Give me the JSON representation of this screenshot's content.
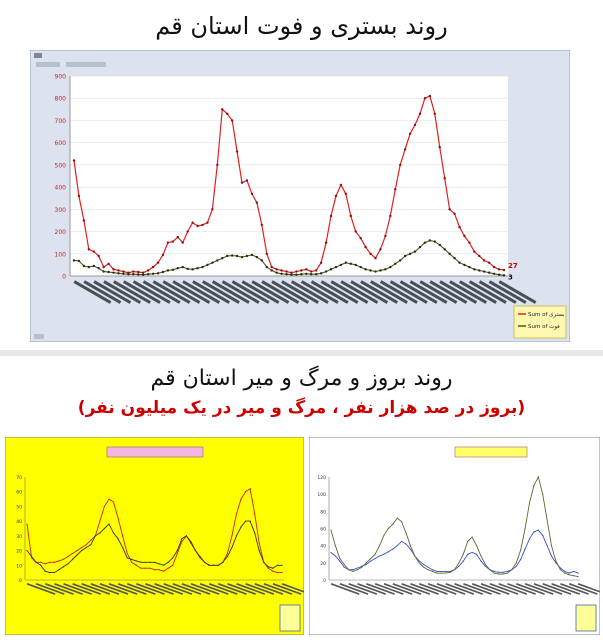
{
  "page": {
    "title_top": "روند بستری و فوت استان قم",
    "title_bottom": "روند بروز و مرگ و میر استان قم",
    "subtitle_bottom": "(بروز در صد هزار نفر ، مرگ و میر در یک میلیون نفر)"
  },
  "chart_data": [
    {
      "type": "line",
      "y_left_ticks": [
        0,
        100,
        200,
        300,
        400,
        500,
        600,
        700,
        800,
        900
      ],
      "ylim": [
        0,
        900
      ],
      "grid": true,
      "legend_placement": "bottom-right",
      "series": [
        {
          "name": "Sum of بستری",
          "color": "#e02020",
          "values": [
            520,
            360,
            250,
            120,
            110,
            90,
            40,
            55,
            30,
            25,
            20,
            15,
            20,
            18,
            15,
            25,
            40,
            60,
            95,
            150,
            155,
            175,
            150,
            200,
            240,
            225,
            230,
            240,
            300,
            500,
            750,
            730,
            700,
            560,
            420,
            430,
            370,
            330,
            230,
            100,
            40,
            30,
            25,
            20,
            15,
            20,
            25,
            30,
            20,
            25,
            60,
            150,
            270,
            360,
            410,
            370,
            270,
            200,
            170,
            130,
            100,
            80,
            120,
            180,
            270,
            390,
            500,
            570,
            640,
            680,
            730,
            800,
            810,
            730,
            580,
            440,
            300,
            280,
            220,
            180,
            150,
            110,
            90,
            70,
            60,
            40,
            30,
            27
          ],
          "end_label": "27"
        },
        {
          "name": "Sum of فوت",
          "color": "#555522",
          "values": [
            70,
            68,
            45,
            40,
            45,
            35,
            20,
            18,
            15,
            12,
            10,
            8,
            8,
            7,
            6,
            8,
            10,
            12,
            18,
            25,
            28,
            35,
            40,
            32,
            30,
            35,
            40,
            50,
            60,
            70,
            80,
            90,
            92,
            90,
            85,
            90,
            95,
            85,
            70,
            40,
            25,
            15,
            10,
            8,
            6,
            6,
            8,
            10,
            8,
            8,
            12,
            20,
            30,
            40,
            50,
            60,
            55,
            50,
            40,
            30,
            25,
            20,
            25,
            30,
            40,
            55,
            70,
            90,
            100,
            110,
            130,
            150,
            160,
            155,
            140,
            120,
            100,
            80,
            60,
            50,
            40,
            30,
            25,
            20,
            15,
            10,
            6,
            3
          ],
          "end_label": "3"
        }
      ]
    },
    {
      "type": "line",
      "y_ticks": [
        0,
        10,
        20,
        30,
        40,
        50,
        60,
        70
      ],
      "ylim": [
        0,
        70
      ],
      "grid": false,
      "series": [
        {
          "color": "#cc2222",
          "values": [
            38,
            15,
            12,
            12,
            11,
            12,
            12,
            13,
            14,
            16,
            18,
            20,
            22,
            24,
            27,
            30,
            40,
            50,
            55,
            53,
            42,
            30,
            18,
            12,
            10,
            8,
            8,
            8,
            7,
            7,
            6,
            8,
            10,
            18,
            26,
            30,
            25,
            20,
            15,
            12,
            10,
            10,
            10,
            12,
            18,
            30,
            45,
            55,
            60,
            62,
            45,
            25,
            12,
            8,
            6,
            5,
            5
          ]
        },
        {
          "color": "#333333",
          "values": [
            20,
            16,
            12,
            10,
            6,
            5,
            5,
            7,
            9,
            11,
            14,
            17,
            20,
            22,
            24,
            30,
            32,
            35,
            38,
            32,
            28,
            22,
            15,
            14,
            13,
            12,
            12,
            12,
            12,
            11,
            10,
            12,
            15,
            20,
            28,
            30,
            26,
            20,
            16,
            12,
            10,
            10,
            10,
            12,
            16,
            22,
            30,
            36,
            40,
            40,
            32,
            20,
            12,
            9,
            8,
            10,
            10
          ]
        }
      ]
    },
    {
      "type": "line",
      "y_ticks": [
        0,
        20,
        40,
        60,
        80,
        100,
        120
      ],
      "ylim": [
        0,
        120
      ],
      "grid": false,
      "series": [
        {
          "color": "#3355cc",
          "values": [
            32,
            28,
            22,
            15,
            12,
            12,
            14,
            16,
            18,
            22,
            25,
            28,
            30,
            33,
            36,
            40,
            45,
            42,
            36,
            28,
            22,
            18,
            15,
            12,
            10,
            10,
            10,
            10,
            12,
            16,
            22,
            30,
            32,
            30,
            22,
            16,
            12,
            10,
            9,
            9,
            10,
            12,
            16,
            24,
            36,
            48,
            56,
            58,
            52,
            40,
            28,
            20,
            14,
            10,
            8,
            10,
            8
          ]
        },
        {
          "color": "#666633",
          "values": [
            58,
            40,
            25,
            18,
            12,
            10,
            12,
            15,
            20,
            25,
            30,
            40,
            52,
            60,
            65,
            72,
            68,
            55,
            40,
            28,
            20,
            15,
            12,
            10,
            8,
            8,
            8,
            9,
            12,
            20,
            30,
            45,
            50,
            40,
            28,
            18,
            12,
            8,
            7,
            7,
            8,
            12,
            20,
            35,
            60,
            90,
            110,
            120,
            100,
            70,
            40,
            22,
            12,
            8,
            6,
            5,
            4
          ]
        }
      ]
    }
  ]
}
